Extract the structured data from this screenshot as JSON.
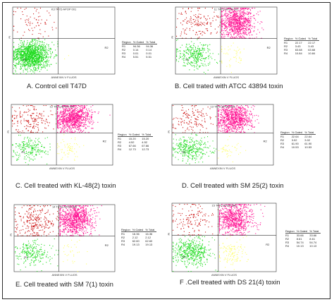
{
  "chart_data": [
    {
      "type": "scatter",
      "panel": "A",
      "plot_title": "K3 T47D APOP 001",
      "caption": "A.   Control cell T47D",
      "xlabel": "ANNEXIN V FLUOS",
      "ylabel": "PI",
      "regions": [
        "R1",
        "R2",
        "R3",
        "R4"
      ],
      "region_table": {
        "headers": [
          "Region",
          "% Gated",
          "% Total"
        ],
        "rows": [
          [
            "R1",
            "94.36",
            "94.36"
          ],
          [
            "R2",
            "0.14",
            "0.14"
          ],
          [
            "R3",
            "0.01",
            "0.01"
          ],
          [
            "R4",
            "5.51",
            "5.51"
          ]
        ]
      },
      "colors": {
        "R1": "#22dd22",
        "R2": "#ffff66",
        "R3": "#ff1493",
        "R4": "#cc1111"
      }
    },
    {
      "type": "scatter",
      "panel": "B",
      "plot_title": "11 T47D APOP 002",
      "caption": "B. Cell trated with ATCC 43894  toxin",
      "xlabel": "ANNEXIN V FLUOS",
      "ylabel": "PI",
      "regions": [
        "R1",
        "R2",
        "R3",
        "R4"
      ],
      "region_table": {
        "headers": [
          "Region",
          "% Gated",
          "% Total"
        ],
        "rows": [
          [
            "R1",
            "22.17",
            "22.17"
          ],
          [
            "R2",
            "3.43",
            "3.43"
          ],
          [
            "R3",
            "63.68",
            "63.68"
          ],
          [
            "R4",
            "10.84",
            "10.84"
          ]
        ]
      },
      "colors": {
        "R1": "#22dd22",
        "R2": "#ffff66",
        "R3": "#ff1493",
        "R4": "#cc1111"
      }
    },
    {
      "type": "scatter",
      "panel": "C",
      "plot_title": "12 T47D APOP 003",
      "caption": "C. Cell treated with KL-48(2) toxin",
      "xlabel": "ANNEXIN V FLUOS",
      "ylabel": "PI",
      "regions": [
        "R1",
        "R2",
        "R3",
        "R4"
      ],
      "region_table": {
        "headers": [
          "Region",
          "% Gated",
          "% Total"
        ],
        "rows": [
          [
            "R1",
            "15.20",
            "15.20"
          ],
          [
            "R2",
            "4.52",
            "4.52"
          ],
          [
            "R3",
            "67.66",
            "67.66"
          ],
          [
            "R4",
            "12.73",
            "12.73"
          ]
        ]
      },
      "colors": {
        "R1": "#22dd22",
        "R2": "#ffff66",
        "R3": "#ff1493",
        "R4": "#cc1111"
      }
    },
    {
      "type": "scatter",
      "panel": "D",
      "plot_title": "13 T47D APOP 004",
      "caption": "D. Cell treated with SM 25(2) toxin",
      "xlabel": "ANNEXIN V FLUOS",
      "ylabel": "PI",
      "regions": [
        "R1",
        "R2",
        "R3",
        "R4"
      ],
      "region_table": {
        "headers": [
          "Region",
          "% Gated",
          "% Total"
        ],
        "rows": [
          [
            "R1",
            "22.64",
            "22.64"
          ],
          [
            "R2",
            "3.02",
            "3.02"
          ],
          [
            "R3",
            "61.90",
            "61.90"
          ],
          [
            "R4",
            "10.53",
            "10.53"
          ]
        ]
      },
      "colors": {
        "R1": "#22dd22",
        "R2": "#ffff66",
        "R3": "#ff1493",
        "R4": "#cc1111"
      }
    },
    {
      "type": "scatter",
      "panel": "E",
      "plot_title": "14 T47D APOP 005",
      "caption": "E. Cell treated with SM 7(1) toxin",
      "xlabel": "ANNEXIN V FLUOS",
      "ylabel": "PI",
      "regions": [
        "R1",
        "R2",
        "R3",
        "R4"
      ],
      "region_table": {
        "headers": [
          "Region",
          "% Gated",
          "% Total"
        ],
        "rows": [
          [
            "R1",
            "16.36",
            "16.36"
          ],
          [
            "R2",
            "2.12",
            "2.12"
          ],
          [
            "R3",
            "62.60",
            "62.60"
          ],
          [
            "R4",
            "19.13",
            "19.13"
          ]
        ]
      },
      "colors": {
        "R1": "#22dd22",
        "R2": "#ffff66",
        "R3": "#ff1493",
        "R4": "#cc1111"
      }
    },
    {
      "type": "scatter",
      "panel": "F",
      "plot_title": "15 T47D APOP 006",
      "caption": "F .Cell treated with DS 21(4) toxin",
      "xlabel": "ANNEXIN V FLUOS",
      "ylabel": "PI",
      "regions": [
        "R1",
        "R2",
        "R3",
        "R4"
      ],
      "region_table": {
        "headers": [
          "Region",
          "% Gated",
          "% Total"
        ],
        "rows": [
          [
            "R1",
            "33.66",
            "33.66"
          ],
          [
            "R2",
            "8.61",
            "8.61"
          ],
          [
            "R3",
            "54.74",
            "54.74"
          ],
          [
            "R4",
            "10.13",
            "10.13"
          ]
        ]
      },
      "colors": {
        "R1": "#22dd22",
        "R2": "#ffff66",
        "R3": "#ff1493",
        "R4": "#cc1111"
      }
    }
  ]
}
